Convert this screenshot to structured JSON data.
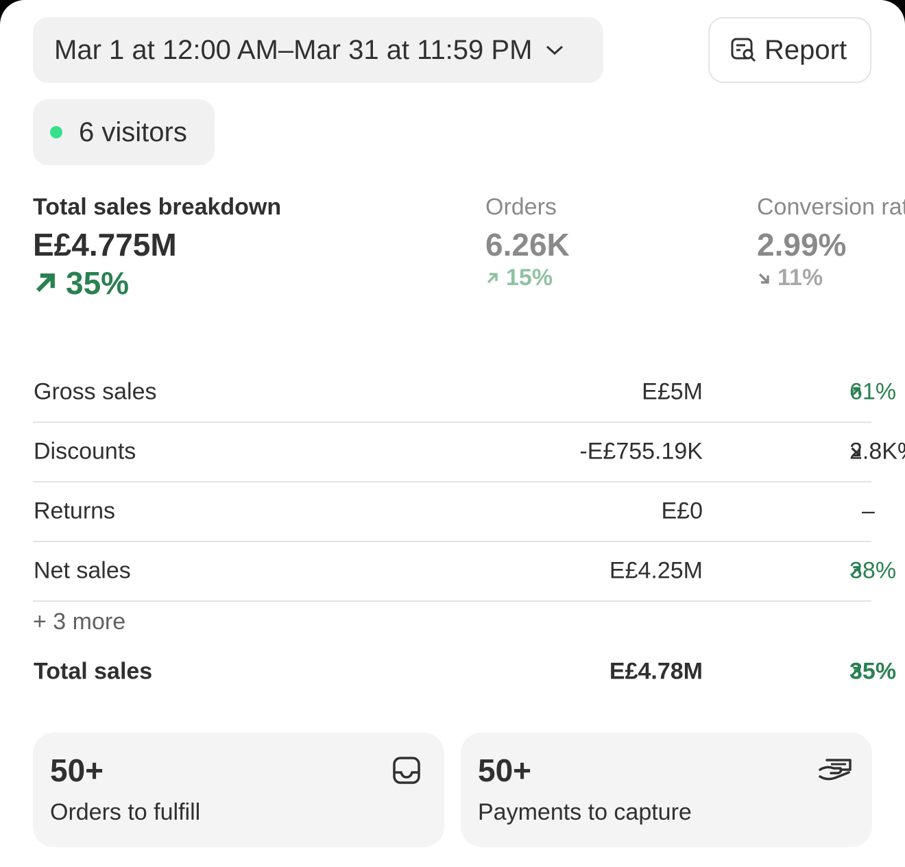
{
  "toolbar": {
    "date_range": "Mar 1 at 12:00 AM–Mar 31 at 11:59 PM",
    "report_button": "Report"
  },
  "visitors": "6 visitors",
  "metrics": [
    {
      "label": "Total sales breakdown",
      "value": "E£4.775M",
      "change": "35%",
      "direction": "up"
    },
    {
      "label": "Orders",
      "value": "6.26K",
      "change": "15%",
      "direction": "up"
    },
    {
      "label": "Conversion rate",
      "value": "2.99%",
      "change": "11%",
      "direction": "down"
    }
  ],
  "breakdown": {
    "rows": [
      {
        "label": "Gross sales",
        "value": "E£5M",
        "change": "61%",
        "direction": "up"
      },
      {
        "label": "Discounts",
        "value": "-E£755.19K",
        "change": "2.8K%",
        "direction": "down"
      },
      {
        "label": "Returns",
        "value": "E£0",
        "change": "–"
      },
      {
        "label": "Net sales",
        "value": "E£4.25M",
        "change": "38%",
        "direction": "up"
      }
    ],
    "more": "+ 3 more",
    "total": {
      "label": "Total sales",
      "value": "E£4.78M",
      "change": "35%",
      "direction": "up"
    }
  },
  "cards": [
    {
      "count": "50+",
      "label": "Orders to fulfill"
    },
    {
      "count": "50+",
      "label": "Payments to capture"
    }
  ]
}
